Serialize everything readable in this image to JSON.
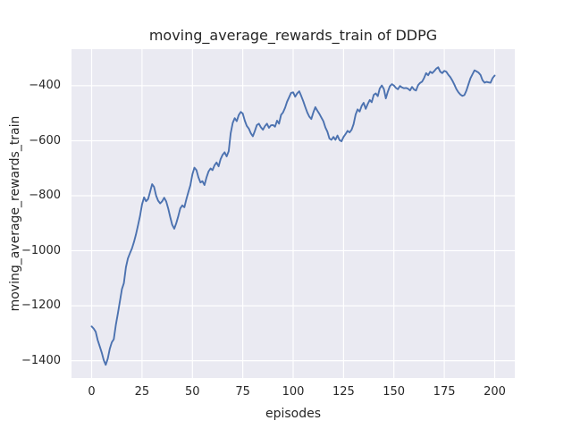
{
  "figure": {
    "title": "moving_average_rewards_train of DDPG",
    "xlabel": "episodes",
    "ylabel": "moving_average_rewards_train"
  },
  "chart_data": {
    "type": "line",
    "title": "moving_average_rewards_train of DDPG",
    "xlabel": "episodes",
    "ylabel": "moving_average_rewards_train",
    "grid": true,
    "legend_position": "none",
    "plot_bg_color": "#EAEAF2",
    "grid_color": "#FFFFFF",
    "line_color": "#4C72B0",
    "text_color": "#262626",
    "xlim": [
      -10,
      210
    ],
    "ylim": [
      -1463,
      -267
    ],
    "xticks": [
      0,
      25,
      50,
      75,
      100,
      125,
      150,
      175,
      200
    ],
    "yticks": [
      -400,
      -600,
      -800,
      -1000,
      -1200,
      -1400
    ],
    "series": [
      {
        "name": "moving_average_rewards_train",
        "color": "#4C72B0",
        "x": [
          0,
          1,
          2,
          3,
          4,
          5,
          6,
          7,
          8,
          9,
          10,
          11,
          12,
          13,
          14,
          15,
          16,
          17,
          18,
          19,
          20,
          21,
          22,
          23,
          24,
          25,
          26,
          27,
          28,
          29,
          30,
          31,
          32,
          33,
          34,
          35,
          36,
          37,
          38,
          39,
          40,
          41,
          42,
          43,
          44,
          45,
          46,
          47,
          48,
          49,
          50,
          51,
          52,
          53,
          54,
          55,
          56,
          57,
          58,
          59,
          60,
          61,
          62,
          63,
          64,
          65,
          66,
          67,
          68,
          69,
          70,
          71,
          72,
          73,
          74,
          75,
          76,
          77,
          78,
          79,
          80,
          81,
          82,
          83,
          84,
          85,
          86,
          87,
          88,
          89,
          90,
          91,
          92,
          93,
          94,
          95,
          96,
          97,
          98,
          99,
          100,
          101,
          102,
          103,
          104,
          105,
          106,
          107,
          108,
          109,
          110,
          111,
          112,
          113,
          114,
          115,
          116,
          117,
          118,
          119,
          120,
          121,
          122,
          123,
          124,
          125,
          126,
          127,
          128,
          129,
          130,
          131,
          132,
          133,
          134,
          135,
          136,
          137,
          138,
          139,
          140,
          141,
          142,
          143,
          144,
          145,
          146,
          147,
          148,
          149,
          150,
          151,
          152,
          153,
          154,
          155,
          156,
          157,
          158,
          159,
          160,
          161,
          162,
          163,
          164,
          165,
          166,
          167,
          168,
          169,
          170,
          171,
          172,
          173,
          174,
          175,
          176,
          177,
          178,
          179,
          180,
          181,
          182,
          183,
          184,
          185,
          186,
          187,
          188,
          189,
          190,
          191,
          192,
          193,
          194,
          195,
          196,
          197,
          198,
          199,
          200
        ],
        "y": [
          -1275,
          -1283,
          -1295,
          -1325,
          -1348,
          -1370,
          -1398,
          -1415,
          -1392,
          -1357,
          -1333,
          -1322,
          -1270,
          -1228,
          -1185,
          -1140,
          -1118,
          -1060,
          -1028,
          -1009,
          -992,
          -968,
          -941,
          -908,
          -873,
          -832,
          -806,
          -820,
          -812,
          -786,
          -758,
          -768,
          -800,
          -818,
          -828,
          -820,
          -807,
          -821,
          -846,
          -878,
          -906,
          -920,
          -900,
          -874,
          -846,
          -835,
          -842,
          -813,
          -786,
          -762,
          -722,
          -698,
          -707,
          -733,
          -752,
          -747,
          -761,
          -733,
          -712,
          -701,
          -707,
          -689,
          -679,
          -693,
          -667,
          -651,
          -642,
          -657,
          -638,
          -573,
          -535,
          -518,
          -529,
          -507,
          -495,
          -501,
          -527,
          -546,
          -556,
          -573,
          -584,
          -564,
          -543,
          -538,
          -551,
          -560,
          -547,
          -538,
          -553,
          -544,
          -543,
          -549,
          -527,
          -538,
          -506,
          -497,
          -480,
          -458,
          -442,
          -426,
          -424,
          -440,
          -428,
          -420,
          -437,
          -456,
          -477,
          -497,
          -512,
          -521,
          -498,
          -478,
          -491,
          -502,
          -516,
          -529,
          -552,
          -567,
          -592,
          -597,
          -586,
          -597,
          -581,
          -598,
          -602,
          -586,
          -576,
          -564,
          -570,
          -560,
          -540,
          -505,
          -486,
          -494,
          -473,
          -462,
          -484,
          -467,
          -452,
          -460,
          -433,
          -428,
          -438,
          -410,
          -399,
          -412,
          -446,
          -421,
          -402,
          -394,
          -399,
          -408,
          -413,
          -401,
          -406,
          -409,
          -408,
          -411,
          -417,
          -404,
          -414,
          -417,
          -398,
          -390,
          -385,
          -372,
          -354,
          -362,
          -349,
          -354,
          -347,
          -338,
          -333,
          -349,
          -354,
          -346,
          -349,
          -360,
          -369,
          -381,
          -396,
          -412,
          -424,
          -432,
          -437,
          -434,
          -417,
          -395,
          -373,
          -358,
          -344,
          -348,
          -352,
          -361,
          -380,
          -389,
          -386,
          -388,
          -389,
          -372,
          -363
        ]
      }
    ]
  }
}
